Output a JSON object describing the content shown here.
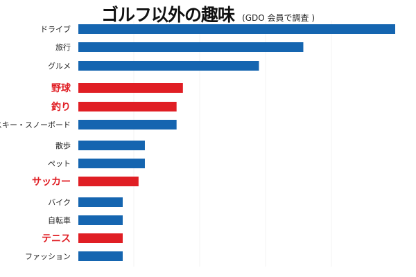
{
  "chart_data": {
    "type": "bar",
    "orientation": "horizontal",
    "title": "ゴルフ以外の趣味",
    "subtitle": "(GDO 会員で調査 )",
    "categories": [
      "ドライブ",
      "旅行",
      "グルメ",
      "野球",
      "釣り",
      "スキー・スノーボード",
      "散歩",
      "ペット",
      "サッカー",
      "バイク",
      "自転車",
      "テニス",
      "ファッション"
    ],
    "values": [
      100,
      71,
      57,
      33,
      31,
      31,
      21,
      21,
      19,
      14,
      14,
      14,
      14
    ],
    "highlighted": [
      "野球",
      "釣り",
      "サッカー",
      "テニス"
    ],
    "xlim": [
      0,
      100
    ],
    "xlabel": "",
    "ylabel": "",
    "grid": false,
    "colors": {
      "default": "#1565b0",
      "highlight": "#e01e24"
    }
  }
}
